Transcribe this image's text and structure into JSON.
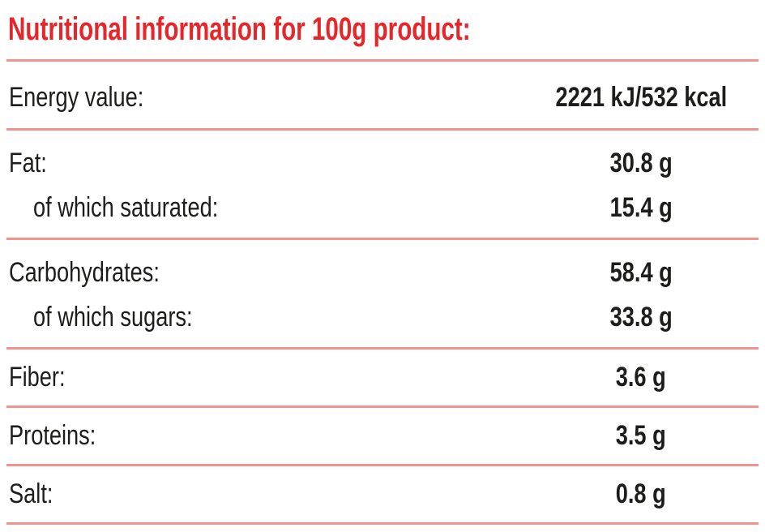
{
  "title": {
    "text": "Nutritional information for 100g product:",
    "color": "#e5262a"
  },
  "table": {
    "line_color": "#f3918e",
    "text_color": "#1d1d1b",
    "sections": [
      {
        "padding": "pad-lg",
        "rows": [
          {
            "label": "Energy value:",
            "value": "2221 kJ/532 kcal",
            "indent": false
          }
        ]
      },
      {
        "padding": "pad-md",
        "rows": [
          {
            "label": "Fat:",
            "value": "30.8 g",
            "indent": false
          },
          {
            "label": "of which saturated:",
            "value": "15.4 g",
            "indent": true
          }
        ]
      },
      {
        "padding": "pad-md",
        "rows": [
          {
            "label": "Carbohydrates:",
            "value": "58.4 g",
            "indent": false
          },
          {
            "label": "of which sugars:",
            "value": "33.8 g",
            "indent": true
          }
        ]
      },
      {
        "padding": "pad-sm",
        "rows": [
          {
            "label": "Fiber:",
            "value": "3.6 g",
            "indent": false
          }
        ]
      },
      {
        "padding": "pad-sm",
        "rows": [
          {
            "label": "Proteins:",
            "value": "3.5 g",
            "indent": false
          }
        ]
      },
      {
        "padding": "pad-sm",
        "rows": [
          {
            "label": "Salt:",
            "value": "0.8 g",
            "indent": false
          }
        ]
      }
    ]
  }
}
